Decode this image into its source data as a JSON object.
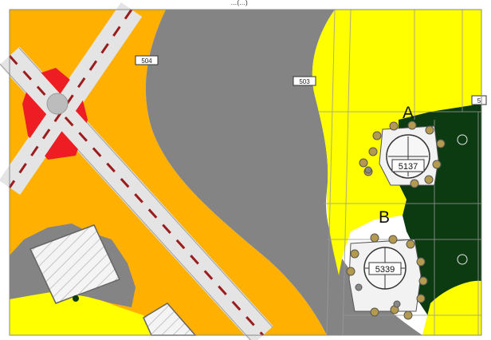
{
  "map": {
    "header_text": "…(…)",
    "colors": {
      "residential": "#ffff00",
      "commercial": "#ffb000",
      "road": "#848484",
      "green_area": "#0c3b12",
      "roundabout": "#ee1d23",
      "street_dash": "#9b1c1c",
      "building": "#f2f2f2",
      "tree_dot": "#b49a4e"
    },
    "road_tags": [
      "504",
      "503",
      "5"
    ],
    "sites": [
      {
        "label": "A",
        "plot": "5137"
      },
      {
        "label": "B",
        "plot": "5339"
      }
    ],
    "icons": [
      "tree-dot-icon",
      "roundabout-icon"
    ]
  }
}
